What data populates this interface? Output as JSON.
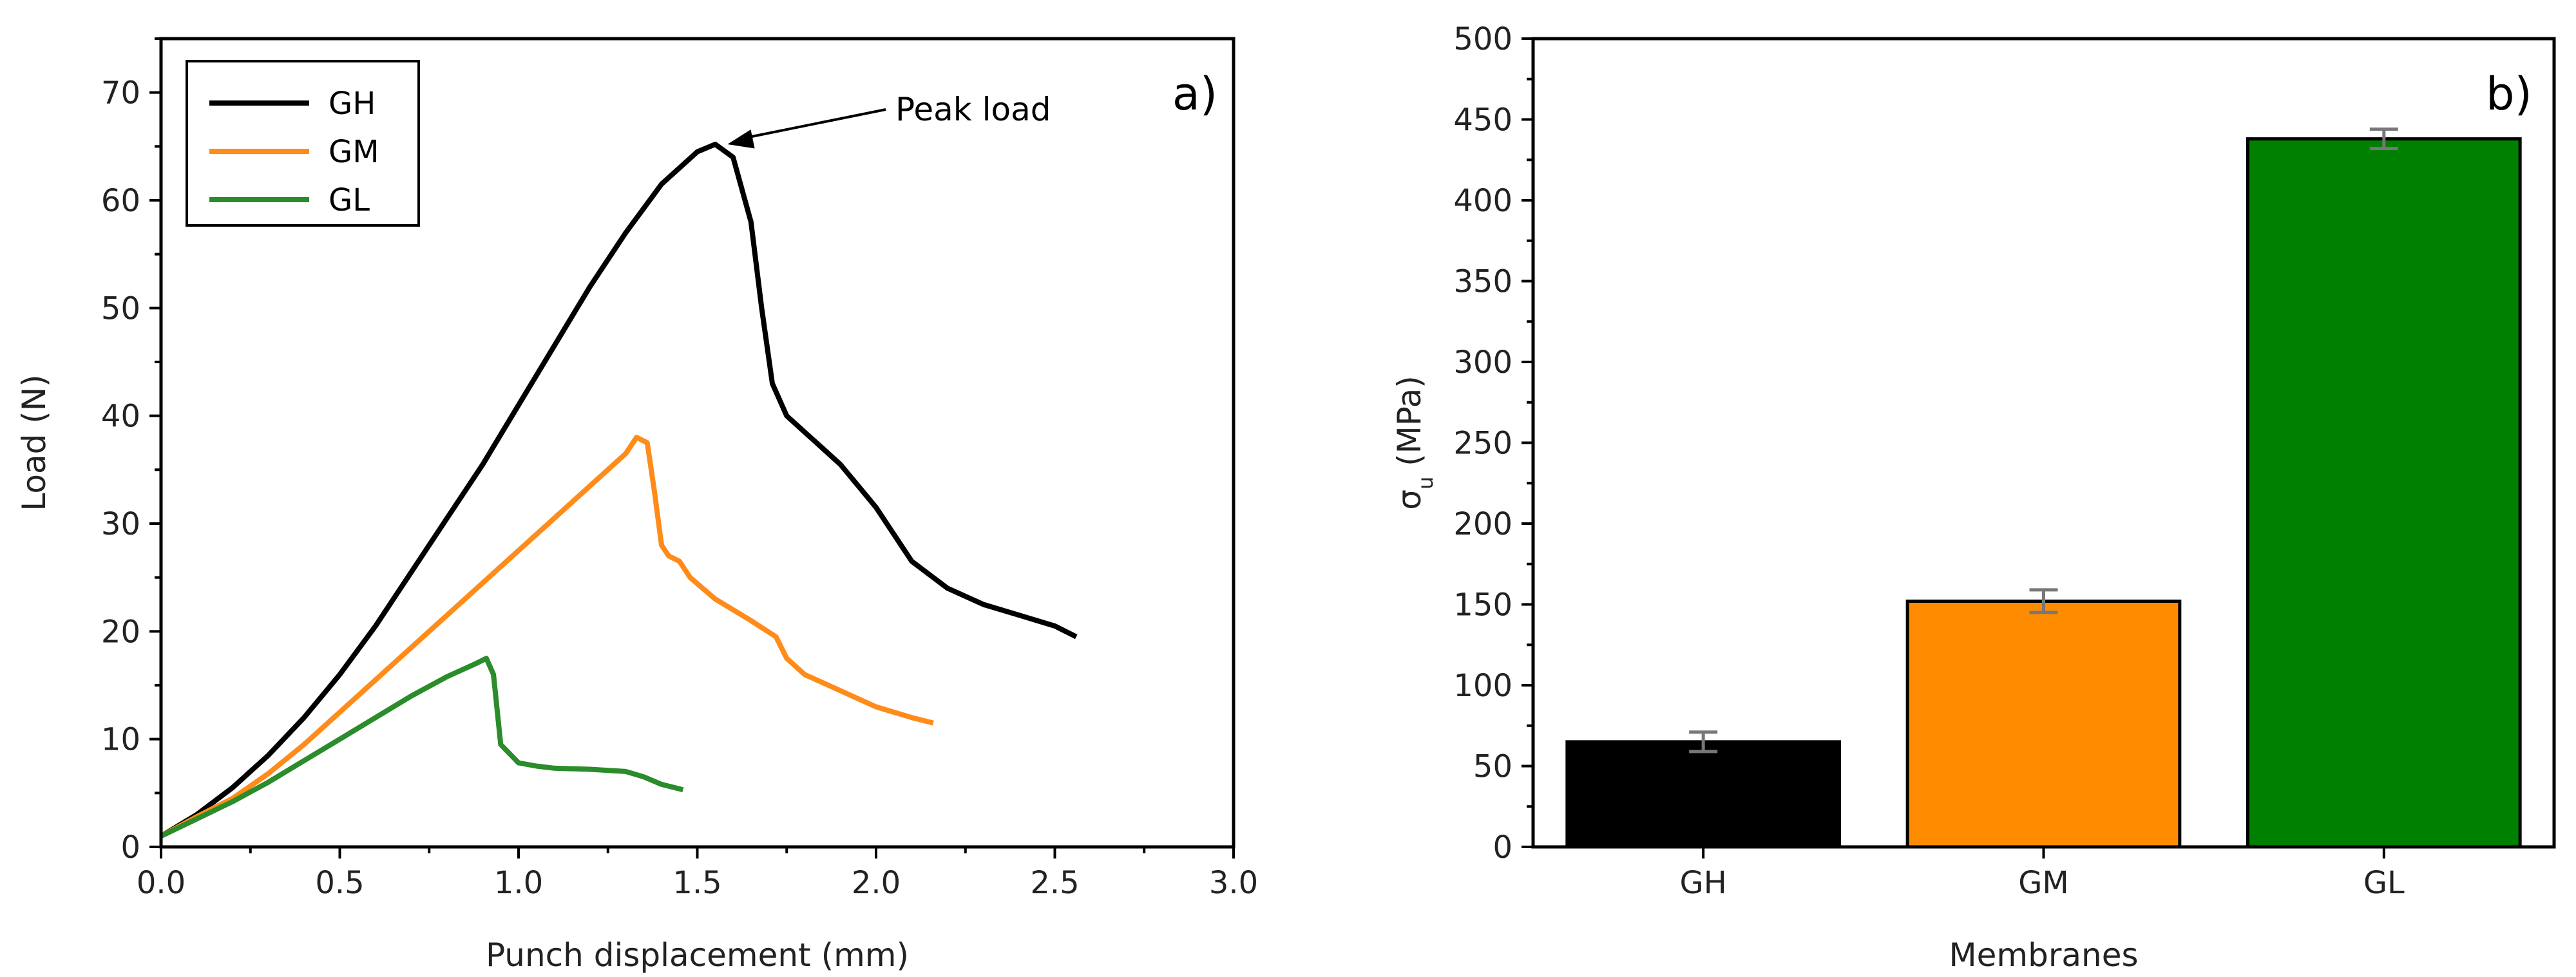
{
  "chart_data": [
    {
      "panel_label": "a)",
      "type": "line",
      "xlabel": "Punch displacement (mm)",
      "ylabel": "Load (N)",
      "xlim": [
        0,
        3.0
      ],
      "ylim": [
        0,
        75
      ],
      "xticks": [
        0.0,
        0.5,
        1.0,
        1.5,
        2.0,
        2.5,
        3.0
      ],
      "xtick_labels": [
        "0.0",
        "0.5",
        "1.0",
        "1.5",
        "2.0",
        "2.5",
        "3.0"
      ],
      "yticks": [
        0,
        10,
        20,
        30,
        40,
        50,
        60,
        70
      ],
      "ytick_labels": [
        "0",
        "10",
        "20",
        "30",
        "40",
        "50",
        "60",
        "70"
      ],
      "legend_position": "top-left",
      "annotation": {
        "text": "Peak load",
        "x": 1.57,
        "y": 65.2
      },
      "series": [
        {
          "name": "GH",
          "color": "#000000",
          "points": [
            [
              0,
              1
            ],
            [
              0.1,
              3
            ],
            [
              0.2,
              5.5
            ],
            [
              0.3,
              8.5
            ],
            [
              0.4,
              12
            ],
            [
              0.5,
              16
            ],
            [
              0.6,
              20.5
            ],
            [
              0.7,
              25.5
            ],
            [
              0.8,
              30.5
            ],
            [
              0.9,
              35.5
            ],
            [
              1.0,
              41
            ],
            [
              1.1,
              46.5
            ],
            [
              1.2,
              52
            ],
            [
              1.3,
              57
            ],
            [
              1.4,
              61.5
            ],
            [
              1.5,
              64.5
            ],
            [
              1.55,
              65.2
            ],
            [
              1.6,
              64
            ],
            [
              1.65,
              58
            ],
            [
              1.68,
              50
            ],
            [
              1.71,
              43
            ],
            [
              1.75,
              40
            ],
            [
              1.8,
              38.5
            ],
            [
              1.85,
              37
            ],
            [
              1.9,
              35.5
            ],
            [
              1.95,
              33.5
            ],
            [
              2.0,
              31.5
            ],
            [
              2.05,
              29
            ],
            [
              2.1,
              26.5
            ],
            [
              2.2,
              24
            ],
            [
              2.3,
              22.5
            ],
            [
              2.4,
              21.5
            ],
            [
              2.5,
              20.5
            ],
            [
              2.56,
              19.5
            ]
          ]
        },
        {
          "name": "GM",
          "color": "#ff8c1a",
          "points": [
            [
              0,
              1
            ],
            [
              0.1,
              2.8
            ],
            [
              0.2,
              4.5
            ],
            [
              0.3,
              6.8
            ],
            [
              0.4,
              9.5
            ],
            [
              0.5,
              12.5
            ],
            [
              0.6,
              15.5
            ],
            [
              0.7,
              18.5
            ],
            [
              0.8,
              21.5
            ],
            [
              0.9,
              24.5
            ],
            [
              1.0,
              27.5
            ],
            [
              1.1,
              30.5
            ],
            [
              1.2,
              33.5
            ],
            [
              1.3,
              36.5
            ],
            [
              1.33,
              38
            ],
            [
              1.36,
              37.5
            ],
            [
              1.38,
              33
            ],
            [
              1.4,
              28
            ],
            [
              1.42,
              27
            ],
            [
              1.45,
              26.5
            ],
            [
              1.48,
              25
            ],
            [
              1.55,
              23
            ],
            [
              1.65,
              21
            ],
            [
              1.72,
              19.5
            ],
            [
              1.75,
              17.5
            ],
            [
              1.8,
              16
            ],
            [
              1.9,
              14.5
            ],
            [
              2.0,
              13
            ],
            [
              2.1,
              12
            ],
            [
              2.16,
              11.5
            ]
          ]
        },
        {
          "name": "GL",
          "color": "#2a8c2a",
          "points": [
            [
              0,
              1
            ],
            [
              0.1,
              2.6
            ],
            [
              0.2,
              4.2
            ],
            [
              0.3,
              6
            ],
            [
              0.4,
              8
            ],
            [
              0.5,
              10
            ],
            [
              0.6,
              12
            ],
            [
              0.7,
              14
            ],
            [
              0.8,
              15.8
            ],
            [
              0.88,
              17
            ],
            [
              0.91,
              17.5
            ],
            [
              0.93,
              16
            ],
            [
              0.95,
              9.5
            ],
            [
              1.0,
              7.8
            ],
            [
              1.05,
              7.5
            ],
            [
              1.1,
              7.3
            ],
            [
              1.2,
              7.2
            ],
            [
              1.3,
              7
            ],
            [
              1.35,
              6.5
            ],
            [
              1.4,
              5.8
            ],
            [
              1.46,
              5.3
            ]
          ]
        }
      ]
    },
    {
      "panel_label": "b)",
      "type": "bar",
      "xlabel": "Membranes",
      "ylabel": "σ",
      "ylabel_sub": "u",
      "ylabel_suffix": " (MPa)",
      "ylim": [
        0,
        500
      ],
      "yticks": [
        0,
        50,
        100,
        150,
        200,
        250,
        300,
        350,
        400,
        450,
        500
      ],
      "ytick_labels": [
        "0",
        "50",
        "100",
        "150",
        "200",
        "250",
        "300",
        "350",
        "400",
        "450",
        "500"
      ],
      "categories": [
        "GH",
        "GM",
        "GL"
      ],
      "values": [
        65,
        152,
        438
      ],
      "errors": [
        6,
        7,
        6
      ],
      "colors": [
        "#000000",
        "#ff8c00",
        "#008000"
      ]
    }
  ]
}
